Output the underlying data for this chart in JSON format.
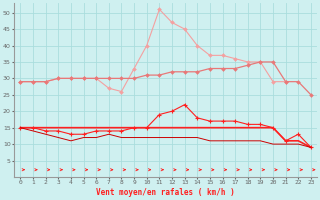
{
  "x": [
    0,
    1,
    2,
    3,
    4,
    5,
    6,
    7,
    8,
    9,
    10,
    11,
    12,
    13,
    14,
    15,
    16,
    17,
    18,
    19,
    20,
    21,
    22,
    23
  ],
  "line1": [
    29,
    29,
    29,
    30,
    30,
    30,
    30,
    27,
    26,
    33,
    40,
    51,
    47,
    45,
    40,
    37,
    37,
    36,
    35,
    35,
    29,
    29,
    null,
    null
  ],
  "line2": [
    29,
    29,
    29,
    30,
    30,
    30,
    30,
    30,
    30,
    30,
    31,
    31,
    32,
    32,
    32,
    33,
    33,
    33,
    34,
    35,
    35,
    29,
    29,
    25
  ],
  "line3": [
    15,
    15,
    14,
    14,
    13,
    13,
    14,
    14,
    14,
    15,
    15,
    19,
    20,
    22,
    18,
    17,
    17,
    17,
    16,
    16,
    15,
    11,
    13,
    9
  ],
  "line4": [
    15,
    15,
    15,
    15,
    15,
    15,
    15,
    15,
    15,
    15,
    15,
    15,
    15,
    15,
    15,
    15,
    15,
    15,
    15,
    15,
    15,
    11,
    11,
    9
  ],
  "line5": [
    15,
    14,
    13,
    12,
    11,
    12,
    12,
    13,
    12,
    12,
    12,
    12,
    12,
    12,
    12,
    11,
    11,
    11,
    11,
    11,
    10,
    10,
    10,
    9
  ],
  "bg_color": "#cff0f0",
  "grid_color": "#aadddd",
  "color_light_pink": "#f4a0a0",
  "color_medium_pink": "#e87878",
  "color_red": "#ff2020",
  "color_dark_red": "#cc0000",
  "xlabel": "Vent moyen/en rafales ( km/h )",
  "ylim": [
    0,
    53
  ],
  "xlim": [
    -0.5,
    23.5
  ],
  "yticks": [
    5,
    10,
    15,
    20,
    25,
    30,
    35,
    40,
    45,
    50
  ],
  "xticks": [
    0,
    1,
    2,
    3,
    4,
    5,
    6,
    7,
    8,
    9,
    10,
    11,
    12,
    13,
    14,
    15,
    16,
    17,
    18,
    19,
    20,
    21,
    22,
    23
  ]
}
